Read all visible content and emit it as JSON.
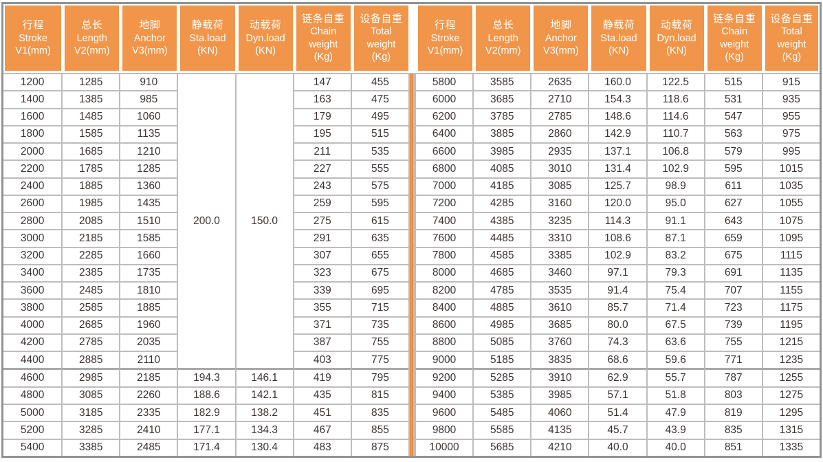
{
  "colors": {
    "header_bg": "#f0954a",
    "header_text": "#ffffff",
    "divider_orange": "#ef9044",
    "grid_line": "#bdbdbd",
    "thick_line": "#a7a7a7",
    "outer_border": "#929292",
    "cell_text": "#3b3432"
  },
  "header_columns": [
    {
      "lines": [
        "行程",
        "Stroke",
        "V1(mm)"
      ]
    },
    {
      "lines": [
        "总长",
        "Length",
        "V2(mm)"
      ]
    },
    {
      "lines": [
        "地脚",
        "Anchor",
        "V3(mm)"
      ]
    },
    {
      "lines": [
        "静载荷",
        "Sta.load",
        "(KN)"
      ]
    },
    {
      "lines": [
        "动载荷",
        "Dyn.load",
        "(KN)"
      ]
    },
    {
      "lines": [
        "链条自重",
        "Chain",
        "weight",
        "(Kg)"
      ]
    },
    {
      "lines": [
        "设备自重",
        "Total",
        "weight",
        "(Kg)"
      ]
    }
  ],
  "thick_divider_row_index": 17,
  "left_table": {
    "merged_static_load": "200.0",
    "merged_dynamic_load": "150.0",
    "merged_row_span": 17,
    "rows": [
      [
        "1200",
        "1285",
        "910",
        null,
        null,
        "147",
        "455"
      ],
      [
        "1400",
        "1385",
        "985",
        null,
        null,
        "163",
        "475"
      ],
      [
        "1600",
        "1485",
        "1060",
        null,
        null,
        "179",
        "495"
      ],
      [
        "1800",
        "1585",
        "1135",
        null,
        null,
        "195",
        "515"
      ],
      [
        "2000",
        "1685",
        "1210",
        null,
        null,
        "211",
        "535"
      ],
      [
        "2200",
        "1785",
        "1285",
        null,
        null,
        "227",
        "555"
      ],
      [
        "2400",
        "1885",
        "1360",
        null,
        null,
        "243",
        "575"
      ],
      [
        "2600",
        "1985",
        "1435",
        null,
        null,
        "259",
        "595"
      ],
      [
        "2800",
        "2085",
        "1510",
        null,
        null,
        "275",
        "615"
      ],
      [
        "3000",
        "2185",
        "1585",
        null,
        null,
        "291",
        "635"
      ],
      [
        "3200",
        "2285",
        "1660",
        null,
        null,
        "307",
        "655"
      ],
      [
        "3400",
        "2385",
        "1735",
        null,
        null,
        "323",
        "675"
      ],
      [
        "3600",
        "2485",
        "1810",
        null,
        null,
        "339",
        "695"
      ],
      [
        "3800",
        "2585",
        "1885",
        null,
        null,
        "355",
        "715"
      ],
      [
        "4000",
        "2685",
        "1960",
        null,
        null,
        "371",
        "735"
      ],
      [
        "4200",
        "2785",
        "2035",
        null,
        null,
        "387",
        "755"
      ],
      [
        "4400",
        "2885",
        "2110",
        null,
        null,
        "403",
        "775"
      ],
      [
        "4600",
        "2985",
        "2185",
        "194.3",
        "146.1",
        "419",
        "795"
      ],
      [
        "4800",
        "3085",
        "2260",
        "188.6",
        "142.1",
        "435",
        "815"
      ],
      [
        "5000",
        "3185",
        "2335",
        "182.9",
        "138.2",
        "451",
        "835"
      ],
      [
        "5200",
        "3285",
        "2410",
        "177.1",
        "134.3",
        "467",
        "855"
      ],
      [
        "5400",
        "3385",
        "2485",
        "171.4",
        "130.4",
        "483",
        "875"
      ]
    ]
  },
  "right_table": {
    "rows": [
      [
        "5800",
        "3585",
        "2635",
        "160.0",
        "122.5",
        "515",
        "915"
      ],
      [
        "6000",
        "3685",
        "2710",
        "154.3",
        "118.6",
        "531",
        "935"
      ],
      [
        "6200",
        "3785",
        "2785",
        "148.6",
        "114.6",
        "547",
        "955"
      ],
      [
        "6400",
        "3885",
        "2860",
        "142.9",
        "110.7",
        "563",
        "975"
      ],
      [
        "6600",
        "3985",
        "2935",
        "137.1",
        "106.8",
        "579",
        "995"
      ],
      [
        "6800",
        "4085",
        "3010",
        "131.4",
        "102.9",
        "595",
        "1015"
      ],
      [
        "7000",
        "4185",
        "3085",
        "125.7",
        "98.9",
        "611",
        "1035"
      ],
      [
        "7200",
        "4285",
        "3160",
        "120.0",
        "95.0",
        "627",
        "1055"
      ],
      [
        "7400",
        "4385",
        "3235",
        "114.3",
        "91.1",
        "643",
        "1075"
      ],
      [
        "7600",
        "4485",
        "3310",
        "108.6",
        "87.1",
        "659",
        "1095"
      ],
      [
        "7800",
        "4585",
        "3385",
        "102.9",
        "83.2",
        "675",
        "1115"
      ],
      [
        "8000",
        "4685",
        "3460",
        "97.1",
        "79.3",
        "691",
        "1135"
      ],
      [
        "8200",
        "4785",
        "3535",
        "91.4",
        "75.4",
        "707",
        "1155"
      ],
      [
        "8400",
        "4885",
        "3610",
        "85.7",
        "71.4",
        "723",
        "1175"
      ],
      [
        "8600",
        "4985",
        "3685",
        "80.0",
        "67.5",
        "739",
        "1195"
      ],
      [
        "8800",
        "5085",
        "3760",
        "74.3",
        "63.6",
        "755",
        "1215"
      ],
      [
        "9000",
        "5185",
        "3835",
        "68.6",
        "59.6",
        "771",
        "1235"
      ],
      [
        "9200",
        "5285",
        "3910",
        "62.9",
        "55.7",
        "787",
        "1255"
      ],
      [
        "9400",
        "5385",
        "3985",
        "57.1",
        "51.8",
        "803",
        "1275"
      ],
      [
        "9600",
        "5485",
        "4060",
        "51.4",
        "47.9",
        "819",
        "1295"
      ],
      [
        "9800",
        "5585",
        "4135",
        "45.7",
        "43.9",
        "835",
        "1315"
      ],
      [
        "10000",
        "5685",
        "4210",
        "40.0",
        "40.0",
        "851",
        "1335"
      ]
    ]
  }
}
